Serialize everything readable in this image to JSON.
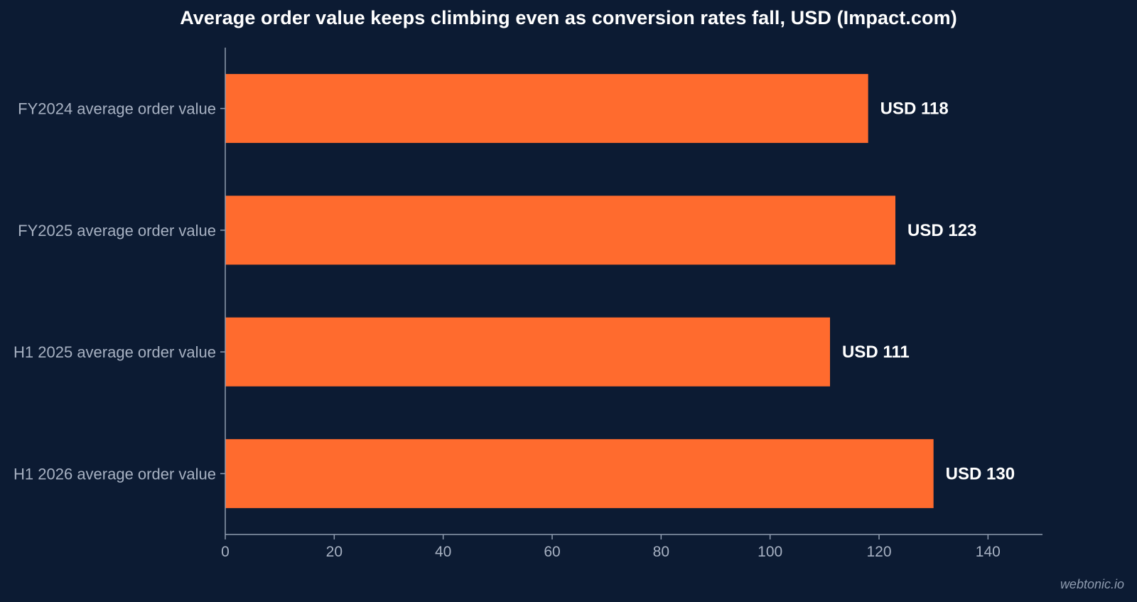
{
  "chart_data": {
    "type": "bar",
    "orientation": "horizontal",
    "title": "Average order value keeps climbing even as conversion rates fall, USD (Impact.com)",
    "categories": [
      "FY2024 average order value",
      "FY2025 average order value",
      "H1 2025 average order value",
      "H1 2026 average order value"
    ],
    "values": [
      118,
      123,
      111,
      130
    ],
    "value_labels": [
      "USD 118",
      "USD 123",
      "USD 111",
      "USD 130"
    ],
    "x_ticks": [
      "0",
      "20",
      "40",
      "60",
      "80",
      "100",
      "120",
      "140"
    ],
    "xlim": [
      0,
      150
    ],
    "grid": false,
    "legend": "none",
    "xlabel": "",
    "ylabel": ""
  },
  "watermark": "webtonic.io",
  "colors": {
    "background": "#0c1b33",
    "bar": "#ff6b2e",
    "axis": "#8f9cb0",
    "tick_text": "#a7b1c2",
    "value_text": "#ffffff"
  }
}
